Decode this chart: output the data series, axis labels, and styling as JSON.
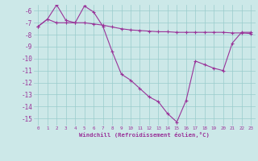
{
  "line1_x": [
    0,
    1,
    2,
    3,
    4,
    5,
    6,
    7,
    8,
    9,
    10,
    11,
    12,
    13,
    14,
    15,
    16,
    17,
    18,
    19,
    20,
    21,
    22,
    23
  ],
  "line1_y": [
    -7.3,
    -6.7,
    -5.5,
    -6.8,
    -7.0,
    -5.6,
    -6.1,
    -7.3,
    -9.4,
    -11.3,
    -11.8,
    -12.5,
    -13.2,
    -13.6,
    -14.6,
    -15.3,
    -13.5,
    -10.2,
    -10.5,
    -10.8,
    -11.0,
    -8.7,
    -7.8,
    -7.8
  ],
  "line2_x": [
    0,
    1,
    2,
    3,
    4,
    5,
    6,
    7,
    8,
    9,
    10,
    11,
    12,
    13,
    14,
    15,
    16,
    17,
    18,
    19,
    20,
    21,
    22,
    23
  ],
  "line2_y": [
    -7.3,
    -6.7,
    -7.0,
    -7.0,
    -7.0,
    -7.0,
    -7.1,
    -7.2,
    -7.35,
    -7.5,
    -7.6,
    -7.65,
    -7.7,
    -7.75,
    -7.75,
    -7.8,
    -7.8,
    -7.8,
    -7.8,
    -7.8,
    -7.8,
    -7.85,
    -7.85,
    -7.9
  ],
  "color": "#993399",
  "bg_color": "#cce8e8",
  "grid_color": "#99cccc",
  "xlabel": "Windchill (Refroidissement éolien,°C)",
  "ylim": [
    -15.6,
    -5.5
  ],
  "xlim": [
    -0.5,
    23.5
  ],
  "yticks": [
    -6,
    -7,
    -8,
    -9,
    -10,
    -11,
    -12,
    -13,
    -14,
    -15
  ],
  "xticks": [
    0,
    1,
    2,
    3,
    4,
    5,
    6,
    7,
    8,
    9,
    10,
    11,
    12,
    13,
    14,
    15,
    16,
    17,
    18,
    19,
    20,
    21,
    22,
    23
  ]
}
